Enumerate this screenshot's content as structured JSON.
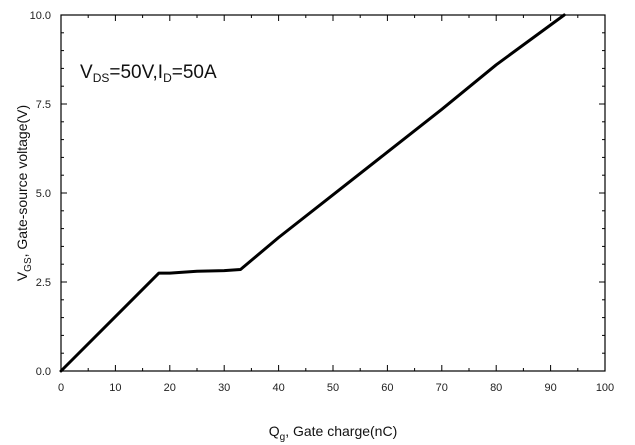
{
  "chart_data": {
    "type": "line",
    "title": "",
    "xlabel": {
      "main": "Q",
      "sub": "g",
      "rest": ", Gate charge(nC)"
    },
    "ylabel": {
      "main": "V",
      "sub": "GS",
      "rest": ", Gate-source voltage(V)"
    },
    "xlim": [
      0,
      100
    ],
    "ylim": [
      0,
      10
    ],
    "x_ticks": [
      0,
      10,
      20,
      30,
      40,
      50,
      60,
      70,
      80,
      90,
      100
    ],
    "x_tick_labels": [
      "0",
      "10",
      "20",
      "30",
      "40",
      "50",
      "60",
      "70",
      "80",
      "90",
      "100"
    ],
    "y_ticks": [
      0,
      2.5,
      5,
      7.5,
      10
    ],
    "y_tick_labels": [
      "0.0",
      "2.5",
      "5.0",
      "7.5",
      "10.0"
    ],
    "grid": false,
    "annotation": {
      "parts": [
        {
          "text": "V",
          "sub": false
        },
        {
          "text": "DS",
          "sub": true
        },
        {
          "text": "=50V,I",
          "sub": false
        },
        {
          "text": "D",
          "sub": true
        },
        {
          "text": "=50A",
          "sub": false
        }
      ]
    },
    "series": [
      {
        "x": [
          0,
          18,
          20,
          25,
          30,
          33,
          40,
          50,
          60,
          70,
          80,
          92.5
        ],
        "y": [
          0,
          2.75,
          2.75,
          2.8,
          2.82,
          2.85,
          3.75,
          4.95,
          6.15,
          7.35,
          8.6,
          10.0
        ],
        "color": "#000000"
      }
    ]
  }
}
